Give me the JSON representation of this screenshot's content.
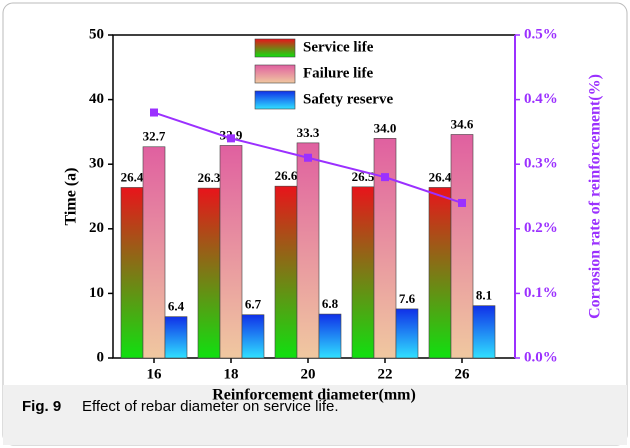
{
  "chart_data": {
    "type": "bar",
    "categories": [
      "16",
      "18",
      "20",
      "22",
      "26"
    ],
    "xlabel": "Reinforcement diameter(mm)",
    "ylabel": "Time (a)",
    "y2label": "Corrosion rate of reinforcement(%)",
    "ylim": [
      0,
      50
    ],
    "yticks": [
      0,
      10,
      20,
      30,
      40,
      50
    ],
    "y2lim": [
      0,
      0.5
    ],
    "y2ticks": [
      {
        "value": 0,
        "label": "0.0%"
      },
      {
        "value": 0.1,
        "label": "0.1%"
      },
      {
        "value": 0.2,
        "label": "0.2%"
      },
      {
        "value": 0.3,
        "label": "0.3%"
      },
      {
        "value": 0.4,
        "label": "0.4%"
      },
      {
        "value": 0.5,
        "label": "0.5%"
      }
    ],
    "series": [
      {
        "name": "Service life",
        "color": "#e8141b",
        "values": [
          26.4,
          26.3,
          26.6,
          26.5,
          26.4
        ]
      },
      {
        "name": "Failure life",
        "color": "#e060a0",
        "values": [
          32.7,
          32.9,
          33.3,
          34.0,
          34.6
        ],
        "value_labels": [
          "32.7",
          "32.9",
          "33.3",
          "34.0",
          "34.6"
        ]
      },
      {
        "name": "Safety reserve",
        "color": "#1030e8",
        "values": [
          6.4,
          6.7,
          6.8,
          7.6,
          8.1
        ]
      },
      {
        "type": "line",
        "axis": "y2",
        "color": "#9b30ff",
        "values": [
          0.38,
          0.34,
          0.31,
          0.28,
          0.24
        ]
      }
    ],
    "legend": "top"
  },
  "caption": {
    "label": "Fig. 9",
    "text": "Effect of rebar diameter on service life."
  }
}
